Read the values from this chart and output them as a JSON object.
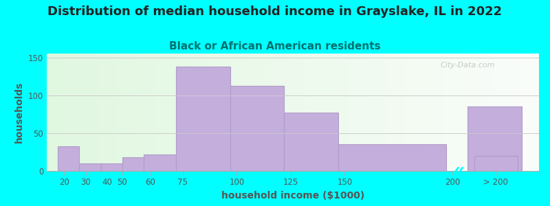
{
  "title": "Distribution of median household income in Grayslake, IL in 2022",
  "subtitle": "Black or African American residents",
  "xlabel": "household income ($1000)",
  "ylabel": "households",
  "background_outer": "#00FFFF",
  "bar_color": "#C4AEDC",
  "bar_edge_color": "#B09CC8",
  "categories": [
    "20",
    "30",
    "40",
    "50",
    "60",
    "75",
    "100",
    "125",
    "150",
    "200",
    "> 200"
  ],
  "values": [
    33,
    10,
    10,
    18,
    22,
    138,
    112,
    77,
    35,
    85,
    20
  ],
  "ylim": [
    0,
    155
  ],
  "yticks": [
    0,
    50,
    100,
    150
  ],
  "watermark": "City-Data.com",
  "title_fontsize": 13,
  "subtitle_fontsize": 11,
  "axis_label_fontsize": 10,
  "tick_fontsize": 8.5,
  "title_color": "#222222",
  "subtitle_color": "#007070",
  "tick_color": "#555555",
  "axis_label_color": "#555555",
  "watermark_color": "#c0c0c0"
}
